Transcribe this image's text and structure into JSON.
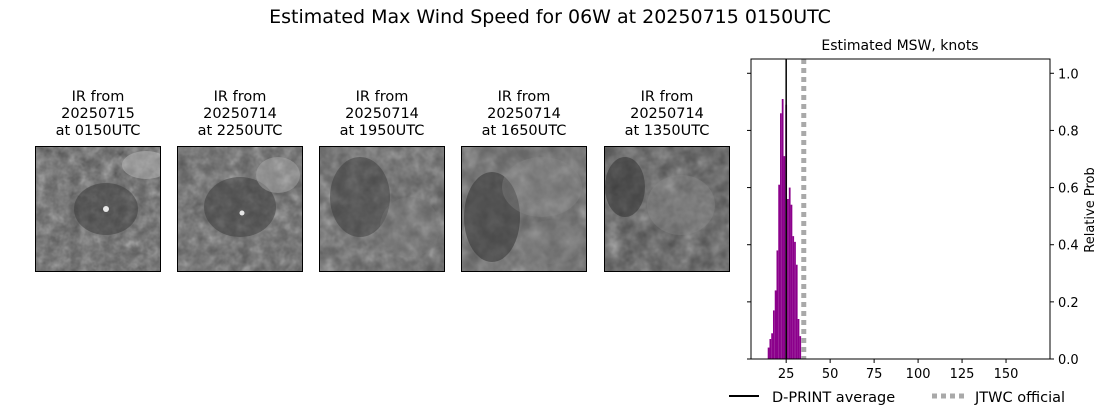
{
  "suptitle": "Estimated Max Wind Speed for 06W at 20250715 0150UTC",
  "ir_panels": [
    {
      "line1": "IR from",
      "line2": "20250715",
      "line3": "at 0150UTC"
    },
    {
      "line1": "IR from",
      "line2": "20250714",
      "line3": "at 2250UTC"
    },
    {
      "line1": "IR from",
      "line2": "20250714",
      "line3": "at 1950UTC"
    },
    {
      "line1": "IR from",
      "line2": "20250714",
      "line3": "at 1650UTC"
    },
    {
      "line1": "IR from",
      "line2": "20250714",
      "line3": "at 1350UTC"
    }
  ],
  "chart_data": {
    "type": "bar",
    "title": "Estimated MSW, knots",
    "xlabel": "",
    "ylabel": "Relative Prob",
    "xlim": [
      5,
      175
    ],
    "ylim": [
      0,
      1.05
    ],
    "xticks": [
      25,
      50,
      75,
      100,
      125,
      150
    ],
    "yticks": [
      0.0,
      0.2,
      0.4,
      0.6,
      0.8,
      1.0
    ],
    "ytick_labels": [
      "0.0",
      "0.2",
      "0.4",
      "0.6",
      "0.8",
      "1.0"
    ],
    "y_axis_side": "right",
    "bar_color": "#8b008b",
    "bin_width": 1,
    "bins": [
      {
        "x": 15,
        "value": 0.04
      },
      {
        "x": 16,
        "value": 0.07
      },
      {
        "x": 17,
        "value": 0.09
      },
      {
        "x": 18,
        "value": 0.17
      },
      {
        "x": 19,
        "value": 0.24
      },
      {
        "x": 20,
        "value": 0.38
      },
      {
        "x": 21,
        "value": 0.61
      },
      {
        "x": 22,
        "value": 0.86
      },
      {
        "x": 23,
        "value": 0.91
      },
      {
        "x": 24,
        "value": 0.71
      },
      {
        "x": 25,
        "value": 0.89
      },
      {
        "x": 26,
        "value": 0.56
      },
      {
        "x": 27,
        "value": 0.6
      },
      {
        "x": 28,
        "value": 0.54
      },
      {
        "x": 29,
        "value": 0.43
      },
      {
        "x": 30,
        "value": 0.41
      },
      {
        "x": 31,
        "value": 0.33
      },
      {
        "x": 32,
        "value": 0.14
      },
      {
        "x": 33,
        "value": 0.08
      }
    ],
    "dprint_average": 25,
    "jtwc_official": 35,
    "legend": [
      {
        "label": "D-PRINT average",
        "color": "#000000",
        "style": "solid"
      },
      {
        "label": "JTWC official",
        "color": "#a9a9a9",
        "style": "dotted"
      }
    ],
    "legend_position": "bottom"
  }
}
